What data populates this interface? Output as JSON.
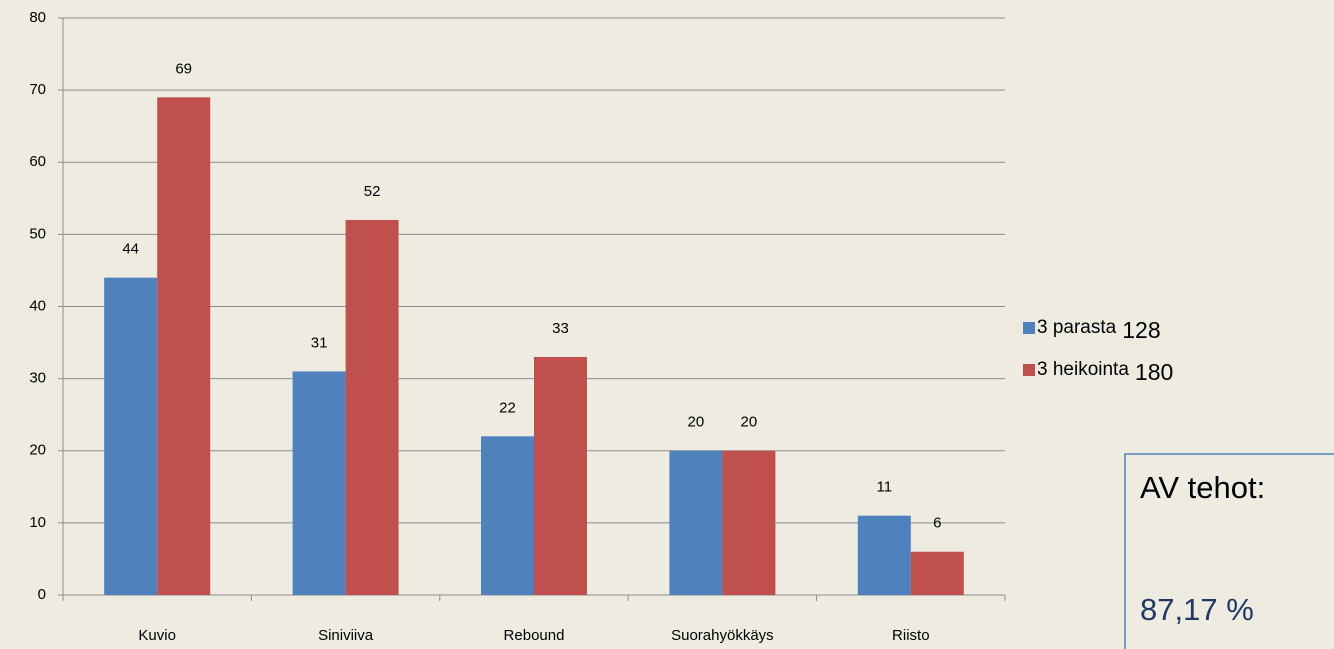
{
  "chart_data": {
    "type": "bar",
    "categories": [
      "Kuvio",
      "Siniviiva",
      "Rebound",
      "Suorahyökkäys",
      "Riisto"
    ],
    "series": [
      {
        "name": "3 parasta",
        "color": "#4f81bd",
        "values": [
          44,
          31,
          22,
          20,
          11
        ],
        "total": 128
      },
      {
        "name": "3 heikointa",
        "color": "#c0504d",
        "values": [
          69,
          52,
          33,
          20,
          6
        ],
        "total": 180
      }
    ],
    "ylim": [
      0,
      80
    ],
    "yticks": [
      0,
      10,
      20,
      30,
      40,
      50,
      60,
      70,
      80
    ],
    "grid": true,
    "legend": "right",
    "annotation": {
      "title": "AV tehot:",
      "value": "87,17 %"
    }
  }
}
